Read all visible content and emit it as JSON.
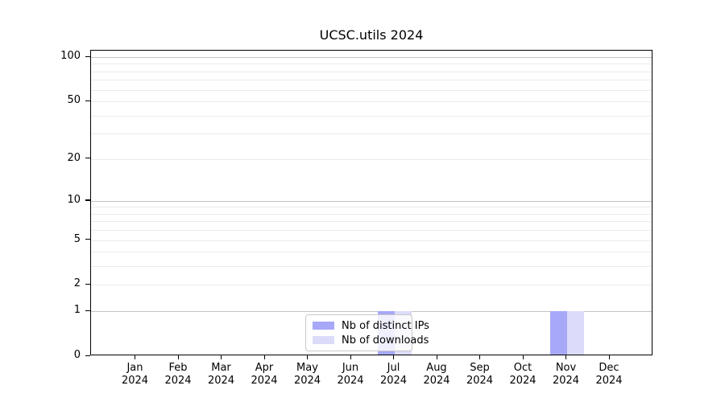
{
  "chart_data": {
    "type": "bar",
    "title": "UCSC.utils 2024",
    "categories": [
      {
        "month": "Jan",
        "year": "2024"
      },
      {
        "month": "Feb",
        "year": "2024"
      },
      {
        "month": "Mar",
        "year": "2024"
      },
      {
        "month": "Apr",
        "year": "2024"
      },
      {
        "month": "May",
        "year": "2024"
      },
      {
        "month": "Jun",
        "year": "2024"
      },
      {
        "month": "Jul",
        "year": "2024"
      },
      {
        "month": "Aug",
        "year": "2024"
      },
      {
        "month": "Sep",
        "year": "2024"
      },
      {
        "month": "Oct",
        "year": "2024"
      },
      {
        "month": "Nov",
        "year": "2024"
      },
      {
        "month": "Dec",
        "year": "2024"
      }
    ],
    "series": [
      {
        "name": "Nb of distinct IPs",
        "color": "#a7a8f7",
        "values": [
          0,
          0,
          0,
          0,
          0,
          0,
          1,
          0,
          0,
          0,
          1,
          0
        ]
      },
      {
        "name": "Nb of downloads",
        "color": "#dcdcfa",
        "values": [
          0,
          0,
          0,
          0,
          0,
          0,
          1,
          0,
          0,
          0,
          1,
          0
        ]
      }
    ],
    "yscale": "log1p",
    "ylim": [
      0,
      100
    ],
    "ytick_values": [
      100,
      50,
      20,
      10,
      5,
      2,
      1,
      0
    ],
    "ytick_labels": [
      "100",
      "50",
      "20",
      "10",
      "5",
      "2",
      "1",
      "0"
    ],
    "minor_tick_values": [
      3,
      4,
      6,
      7,
      8,
      9,
      30,
      40,
      60,
      70,
      80,
      90
    ],
    "decade_values": [
      1,
      10,
      100
    ],
    "grid": "horizontal",
    "legend_position": "inside-bottom-center",
    "colors": {
      "axis": "#000000",
      "grid_major": "#c3c3c3",
      "grid_minor": "#ebebeb",
      "background": "#ffffff"
    }
  }
}
